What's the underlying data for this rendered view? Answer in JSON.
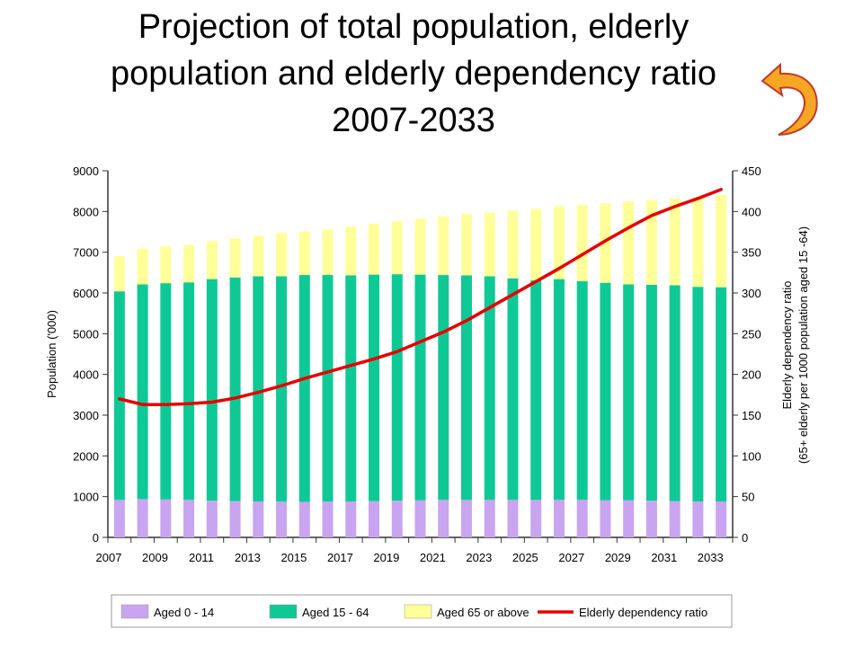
{
  "title": "Projection of total population, elderly population and elderly dependency ratio 2007-2033",
  "back_arrow_icon": "curved-back-arrow-icon",
  "colors": {
    "aged_0_14": "#c9a4f0",
    "aged_15_64": "#0ec996",
    "aged_65_plus": "#ffff99",
    "ratio_line": "#e80000",
    "arrow_fill": "#f5a623",
    "arrow_stroke": "#c0392b"
  },
  "chart_data": {
    "type": "bar",
    "stacked": true,
    "categories": [
      "2007",
      "2008",
      "2009",
      "2010",
      "2011",
      "2012",
      "2013",
      "2014",
      "2015",
      "2016",
      "2017",
      "2018",
      "2019",
      "2020",
      "2021",
      "2022",
      "2023",
      "2024",
      "2025",
      "2026",
      "2027",
      "2028",
      "2029",
      "2030",
      "2031",
      "2032",
      "2033"
    ],
    "x_tick_labels": [
      "2007",
      "2009",
      "2011",
      "2013",
      "2015",
      "2017",
      "2019",
      "2021",
      "2023",
      "2025",
      "2027",
      "2029",
      "2031",
      "2033"
    ],
    "ylabel": "Population ('000)",
    "ylim": [
      0,
      9000
    ],
    "y_ticks": [
      "0",
      "1000",
      "2000",
      "3000",
      "4000",
      "5000",
      "6000",
      "7000",
      "8000",
      "9000"
    ],
    "y2label_line1": "Elderly dependency ratio",
    "y2label_line2": "(65+ elderly per 1000 population aged 15 -64)",
    "y2lim": [
      0,
      450
    ],
    "y2_ticks": [
      "0",
      "50",
      "100",
      "150",
      "200",
      "250",
      "300",
      "350",
      "400",
      "450"
    ],
    "grid": false,
    "legend_position": "bottom",
    "series": [
      {
        "name": "Aged 0 - 14",
        "kind": "bar",
        "values": [
          920,
          940,
          930,
          920,
          900,
          890,
          880,
          880,
          870,
          880,
          880,
          890,
          900,
          910,
          920,
          920,
          920,
          920,
          920,
          920,
          920,
          910,
          910,
          900,
          890,
          880,
          880
        ]
      },
      {
        "name": "Aged 15 - 64",
        "kind": "bar",
        "values": [
          5120,
          5270,
          5310,
          5340,
          5440,
          5490,
          5530,
          5530,
          5570,
          5560,
          5550,
          5560,
          5560,
          5540,
          5520,
          5510,
          5490,
          5440,
          5390,
          5420,
          5370,
          5340,
          5300,
          5300,
          5300,
          5270,
          5260
        ]
      },
      {
        "name": "Aged 65 or above",
        "kind": "bar",
        "values": [
          860,
          880,
          900,
          920,
          930,
          960,
          990,
          1060,
          1070,
          1120,
          1200,
          1250,
          1300,
          1370,
          1440,
          1510,
          1560,
          1660,
          1750,
          1790,
          1870,
          1950,
          2040,
          2080,
          2130,
          2200,
          2260
        ]
      },
      {
        "name": "Elderly dependency ratio",
        "kind": "line",
        "axis": "right",
        "values": [
          170,
          163,
          163,
          164,
          166,
          171,
          178,
          186,
          195,
          203,
          211,
          219,
          228,
          240,
          252,
          266,
          282,
          298,
          314,
          330,
          347,
          364,
          380,
          395,
          406,
          416,
          427
        ]
      }
    ]
  }
}
